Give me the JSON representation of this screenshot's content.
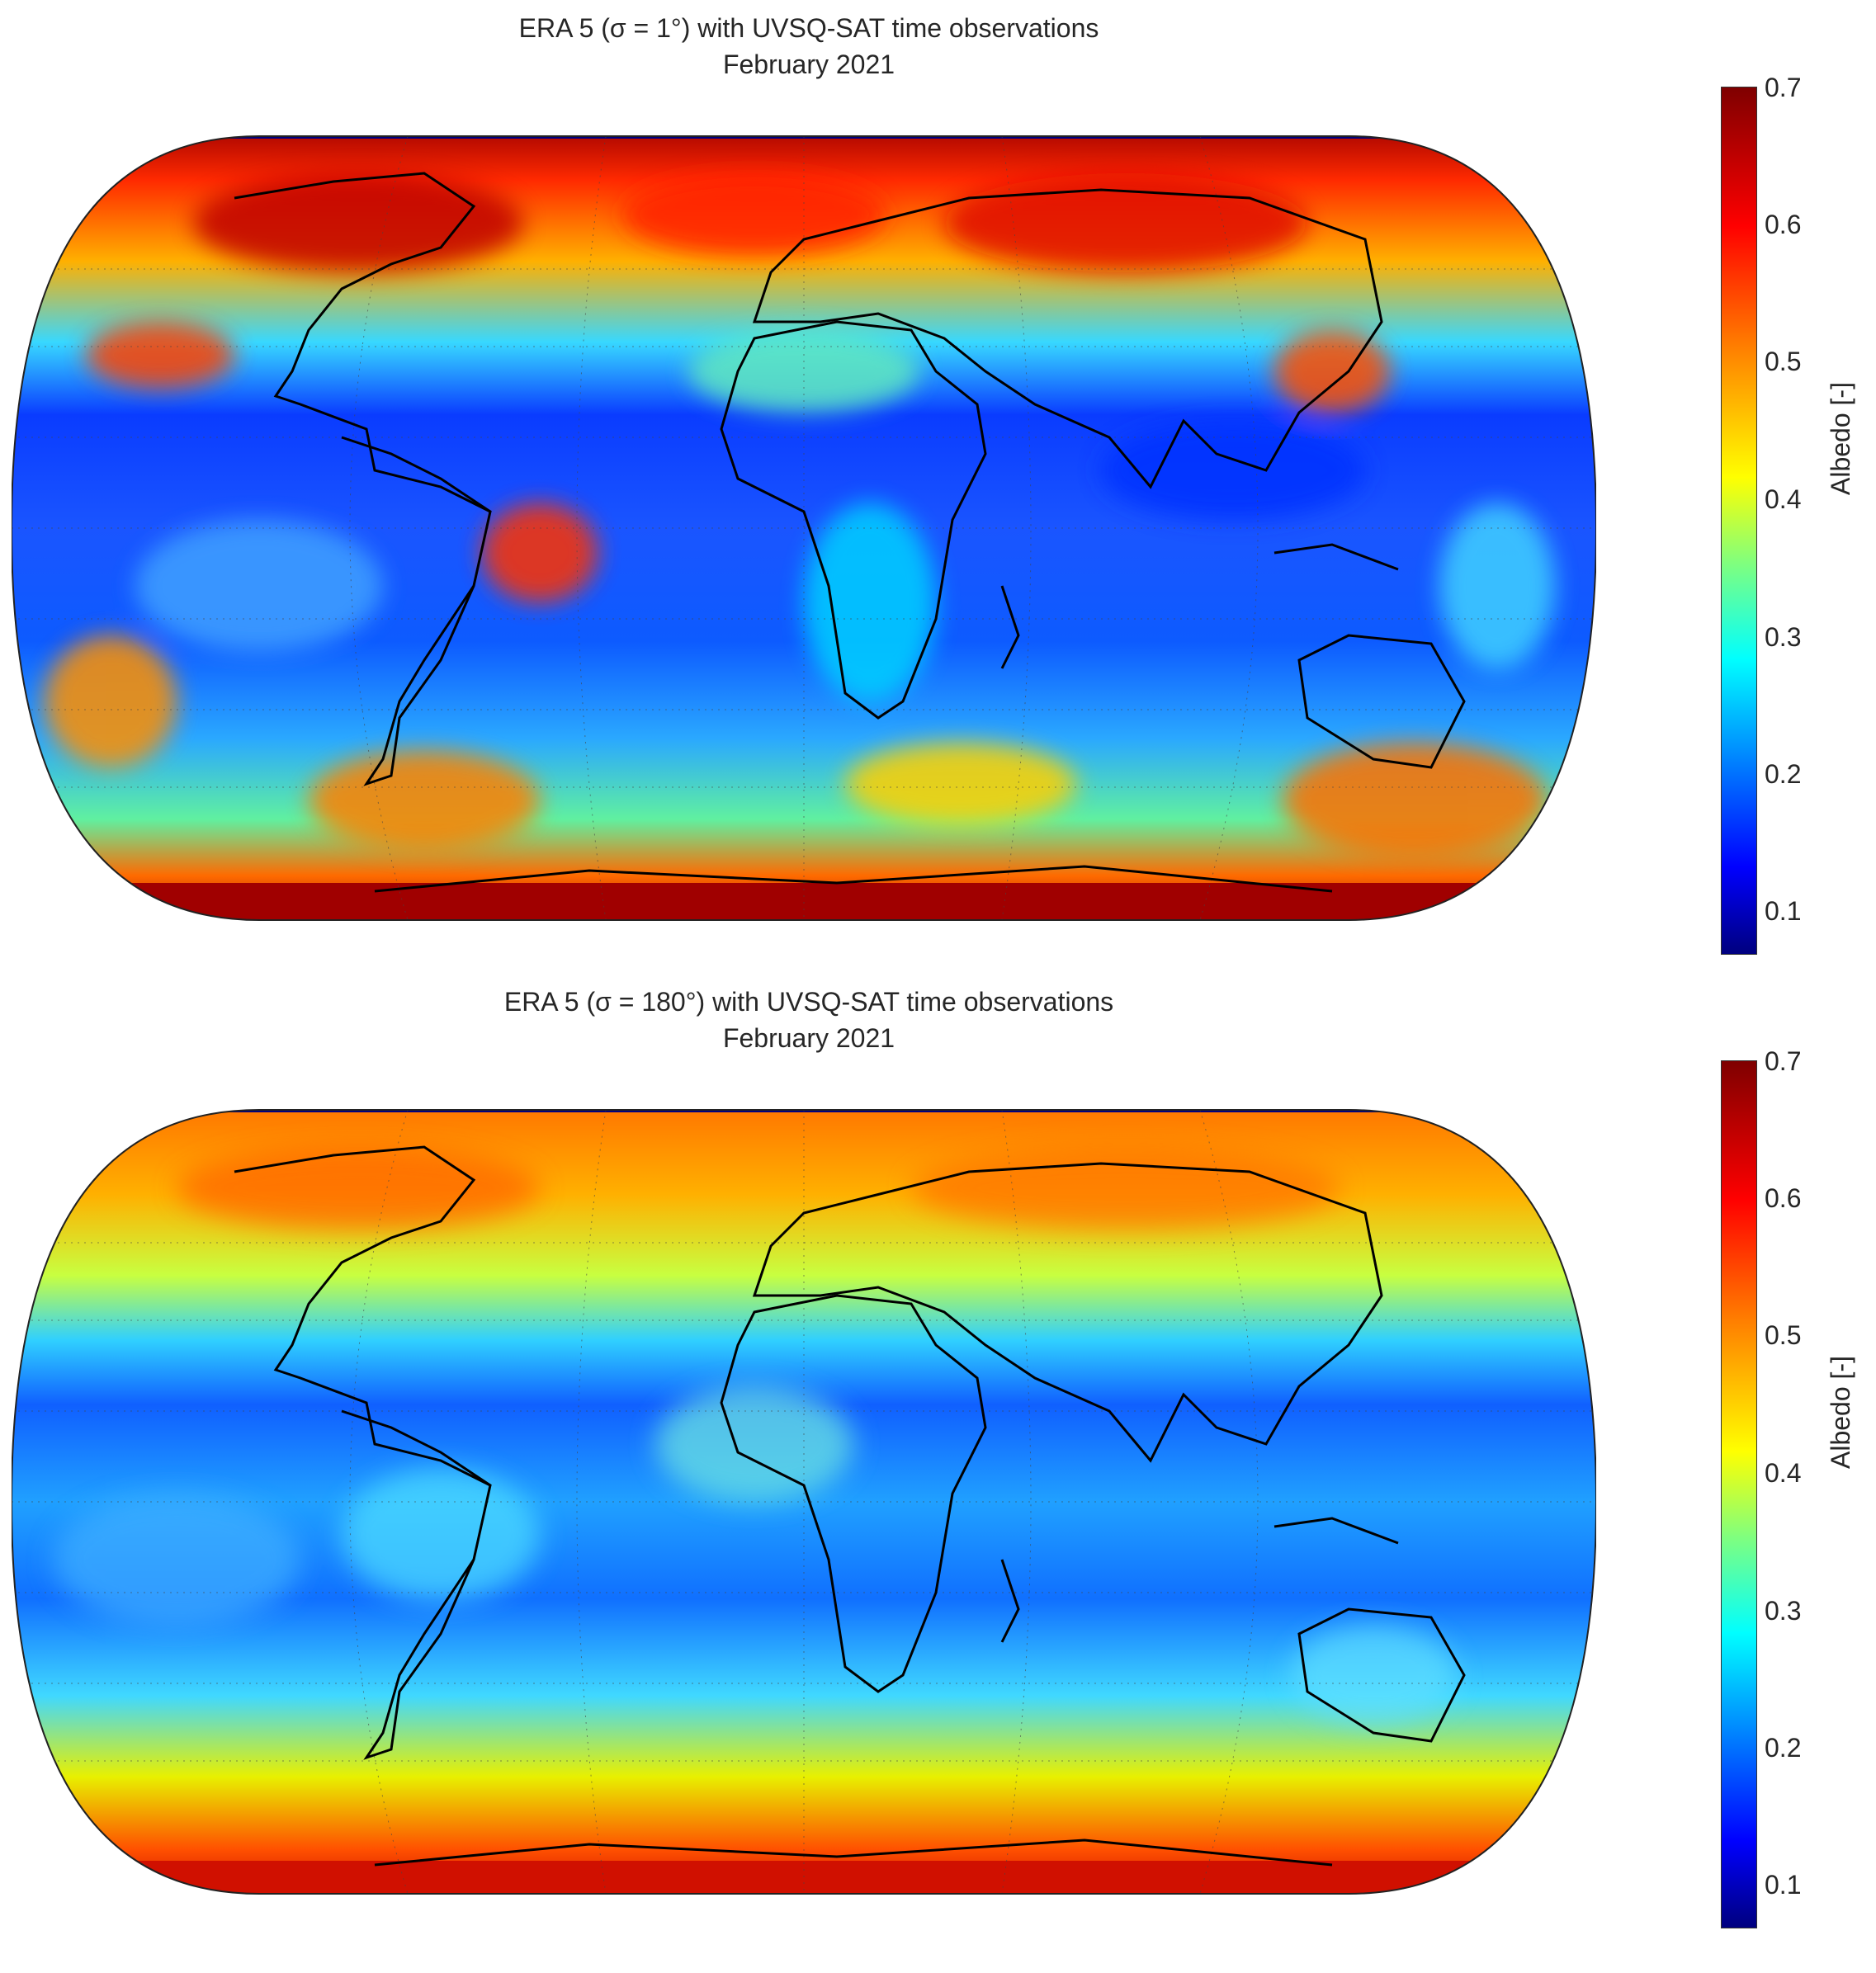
{
  "maps": [
    {
      "title_line1": "ERA 5 (σ = 1°) with UVSQ-SAT time observations",
      "title_line2": "February 2021",
      "colorbar_label": "Albedo [-]",
      "colorbar_ticks": [
        "0.7",
        "0.6",
        "0.5",
        "0.4",
        "0.3",
        "0.2",
        "0.1"
      ],
      "projection": "Eckert IV",
      "colormap": "jet",
      "colorbar_range": [
        0.07,
        0.7
      ]
    },
    {
      "title_line1": "ERA 5 (σ = 180°) with UVSQ-SAT time observations",
      "title_line2": "February 2021",
      "colorbar_label": "Albedo [-]",
      "colorbar_ticks": [
        "0.7",
        "0.6",
        "0.5",
        "0.4",
        "0.3",
        "0.2",
        "0.1"
      ],
      "projection": "Eckert IV",
      "colormap": "jet",
      "colorbar_range": [
        0.07,
        0.7
      ]
    }
  ],
  "colors": {
    "jet": [
      "#00007f",
      "#0000ff",
      "#007fff",
      "#00ffff",
      "#7fff7f",
      "#ffff00",
      "#ff7f00",
      "#ff0000",
      "#7f0000"
    ],
    "coastline": "#000000"
  }
}
